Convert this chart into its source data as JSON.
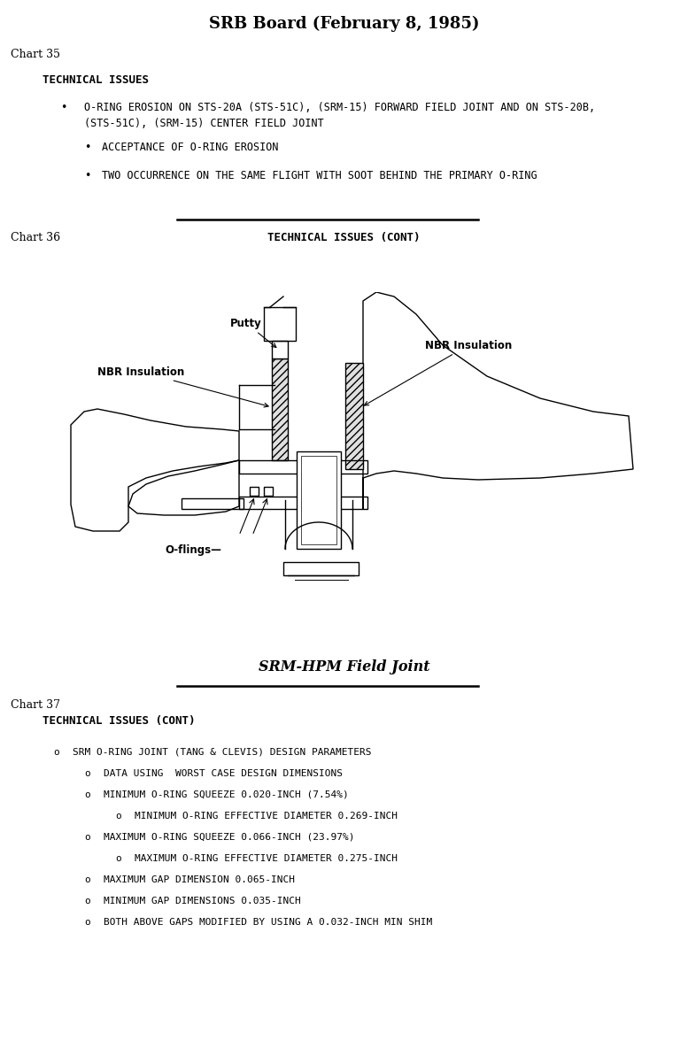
{
  "title": "SRB Board (February 8, 1985)",
  "bg_color": "#ffffff",
  "text_color": "#000000",
  "chart35_label": "Chart 35",
  "chart35_heading": "TECHNICAL ISSUES",
  "chart35_line1": "O-RING EROSION ON STS-20A (STS-51C), (SRM-15) FORWARD FIELD JOINT AND ON STS-20B,",
  "chart35_line2": "(STS-51C), (SRM-15) CENTER FIELD JOINT",
  "chart35_sub1": "ACCEPTANCE OF O-RING EROSION",
  "chart35_sub2": "TWO OCCURRENCE ON THE SAME FLIGHT WITH SOOT BEHIND THE PRIMARY O-RING",
  "chart36_label": "Chart 36",
  "chart36_heading": "TECHNICAL ISSUES (CONT)",
  "chart36_caption": "SRM-HPM Field Joint",
  "chart37_label": "Chart 37",
  "chart37_heading": "TECHNICAL ISSUES (CONT)",
  "chart37_items": [
    {
      "level": 0,
      "text": "SRM O-RING JOINT (TANG & CLEVIS) DESIGN PARAMETERS"
    },
    {
      "level": 1,
      "text": "DATA USING  WORST CASE DESIGN DIMENSIONS"
    },
    {
      "level": 1,
      "text": "MINIMUM O-RING SQUEEZE 0.020-INCH (7.54%)"
    },
    {
      "level": 2,
      "text": "MINIMUM O-RING EFFECTIVE DIAMETER 0.269-INCH"
    },
    {
      "level": 1,
      "text": "MAXIMUM O-RING SQUEEZE 0.066-INCH (23.97%)"
    },
    {
      "level": 2,
      "text": "MAXIMUM O-RING EFFECTIVE DIAMETER 0.275-INCH"
    },
    {
      "level": 1,
      "text": "MAXIMUM GAP DIMENSION 0.065-INCH"
    },
    {
      "level": 1,
      "text": "MINIMUM GAP DIMENSIONS 0.035-INCH"
    },
    {
      "level": 1,
      "text": "BOTH ABOVE GAPS MODIFIED BY USING A 0.032-INCH MIN SHIM"
    }
  ]
}
